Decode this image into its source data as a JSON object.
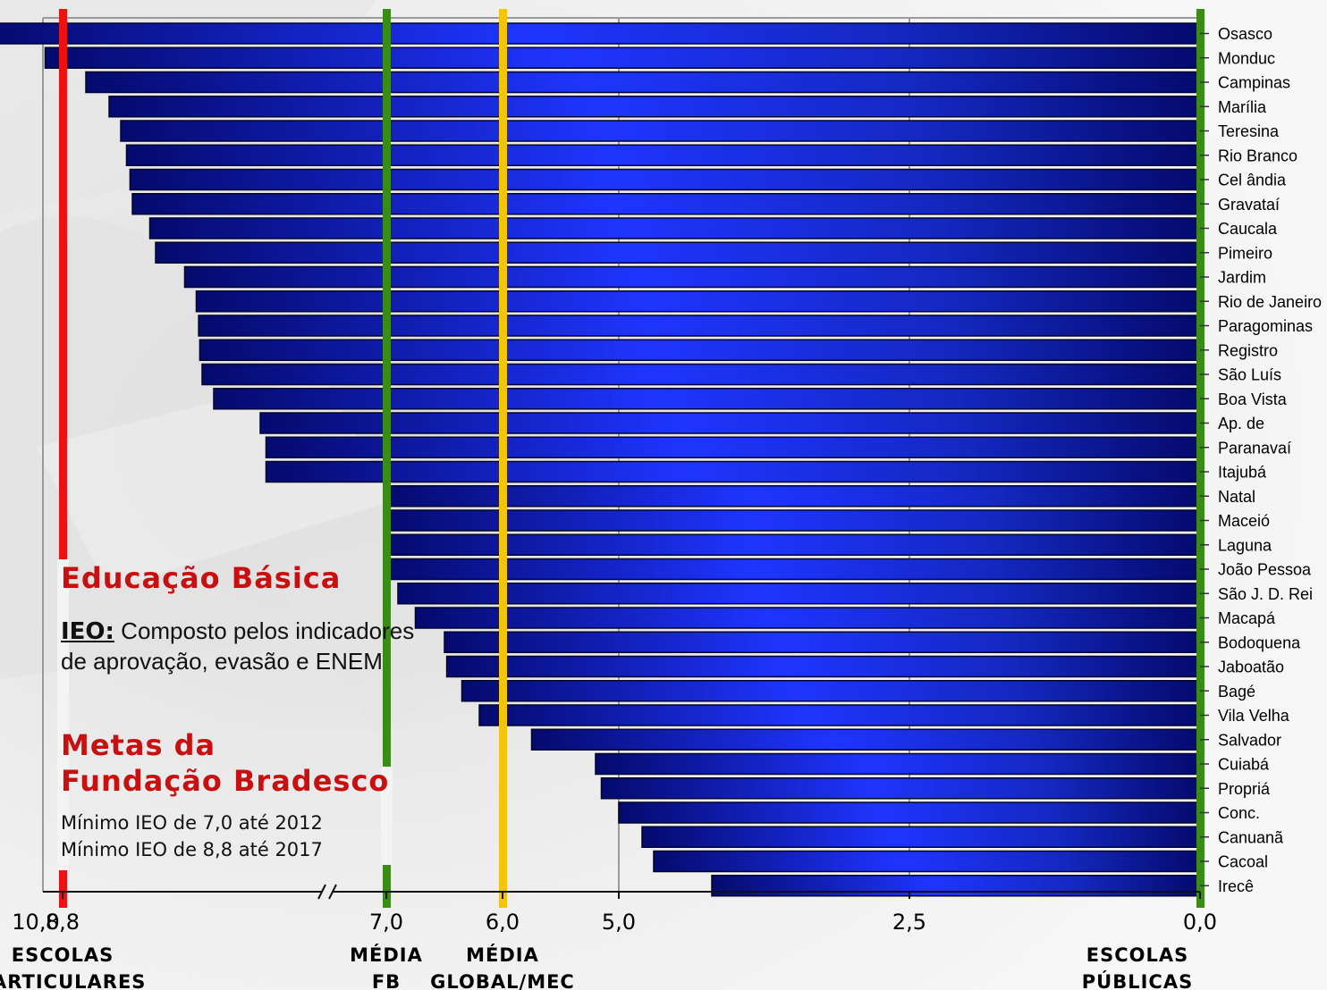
{
  "chart_data": {
    "type": "bar",
    "orientation": "horizontal",
    "x_axis_reversed": true,
    "xlim": [
      0,
      10
    ],
    "x_axis_break_between": [
      7.0,
      8.8
    ],
    "categories": [
      "Osasco",
      "Monduc",
      "Campinas",
      "Marília",
      "Teresina",
      "Rio Branco",
      "Cel ândia",
      "Gravataí",
      "Caucala",
      "Pimeiro",
      "Jardim",
      "Rio de Janeiro",
      "Paragominas",
      "Registro",
      "São Luís",
      "Boa Vista",
      "Ap. de",
      "Paranavaí",
      "Itajubá",
      "Natal",
      "Maceió",
      "Laguna",
      "João Pessoa",
      "São J. D. Rei",
      "Macapá",
      "Bodoquena",
      "Jaboatão",
      "Bagé",
      "Vila Velha",
      "Salvador",
      "Cuiabá",
      "Propriá",
      "Conc.",
      "Canuanã",
      "Cacoal",
      "Irecê"
    ],
    "values": [
      9.5,
      8.95,
      8.6,
      8.4,
      8.3,
      8.25,
      8.22,
      8.2,
      8.05,
      8.0,
      7.75,
      7.65,
      7.63,
      7.62,
      7.6,
      7.5,
      7.1,
      7.05,
      7.05,
      7.0,
      7.0,
      7.0,
      7.0,
      6.9,
      6.75,
      6.5,
      6.48,
      6.35,
      6.2,
      5.75,
      5.2,
      5.15,
      5.0,
      4.8,
      4.7,
      4.2
    ],
    "x_ticks": [
      {
        "value": 10.0,
        "label": "10,0"
      },
      {
        "value": 8.8,
        "label": "8,8"
      },
      {
        "value": 7.0,
        "label": "7,0"
      },
      {
        "value": 6.0,
        "label": "6,0"
      },
      {
        "value": 5.0,
        "label": "5,0"
      },
      {
        "value": 2.5,
        "label": "2,5"
      },
      {
        "value": 0.0,
        "label": "0,0"
      }
    ],
    "reference_lines": [
      {
        "value": 8.8,
        "color": "#ee1111",
        "caption": [
          "ESCOLAS",
          "PARTICULARES"
        ]
      },
      {
        "value": 7.0,
        "color": "#3a8c18",
        "caption": [
          "MÉDIA",
          "FB"
        ]
      },
      {
        "value": 6.0,
        "color": "#f2c40a",
        "caption": [
          "MÉDIA",
          "GLOBAL/MEC"
        ]
      },
      {
        "value": 0.0,
        "color": "#3a8c18",
        "caption": [
          "ESCOLAS",
          "PÚBLICAS"
        ]
      }
    ],
    "grid": true,
    "bar_color": "#0a16b4"
  },
  "annotations": {
    "title": "Educação Básica",
    "ieo_key": "IEO:",
    "ieo_text": " Composto pelos indicadores de aprovação, evasão e ENEM",
    "goals_title_line1": "Metas da",
    "goals_title_line2": "Fundação Bradesco",
    "goal_1": "Mínimo IEO de 7,0 até 2012",
    "goal_2": "Mínimo IEO de 8,8 até 2017"
  },
  "colors": {
    "accent_red": "#c81010",
    "bar_dark": "#050a6e",
    "bar_light": "#1e35ff"
  }
}
